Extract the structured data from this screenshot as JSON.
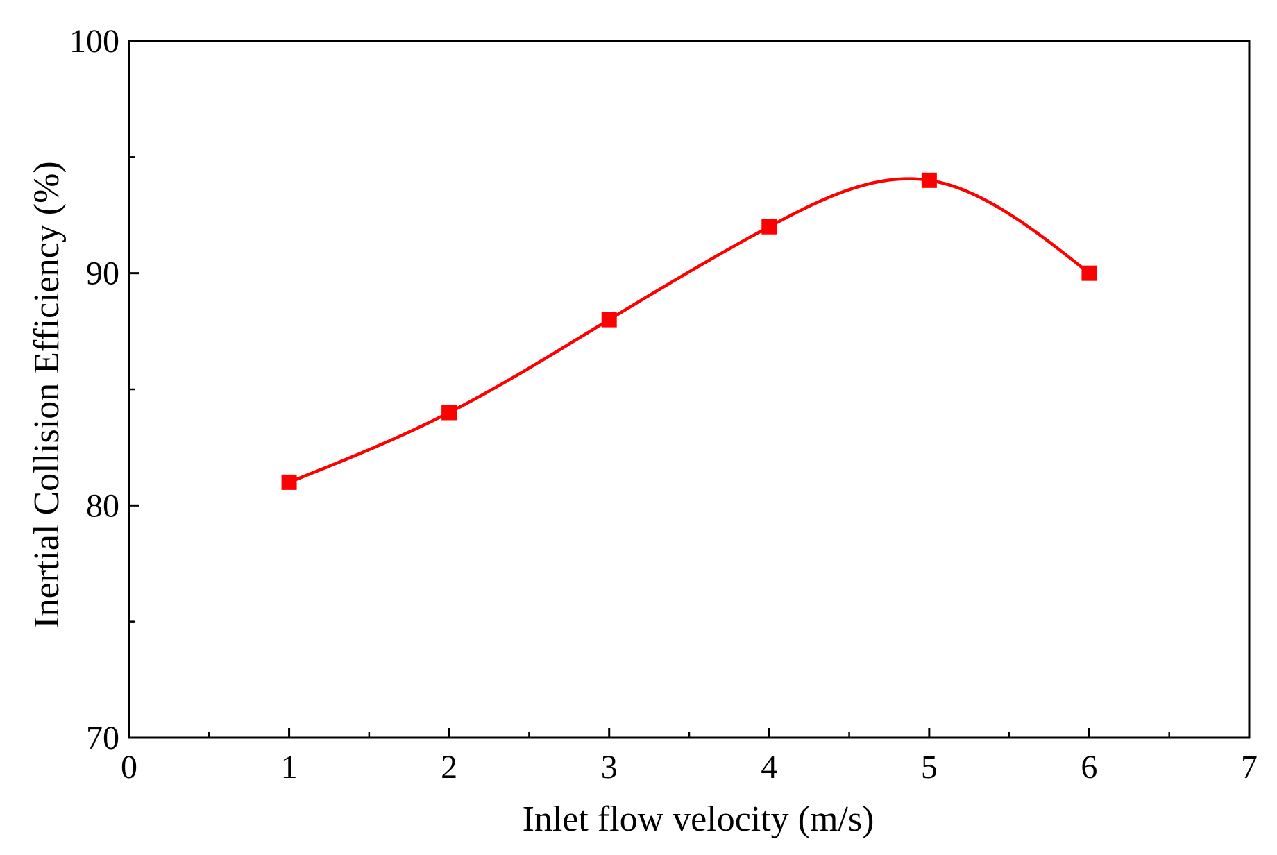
{
  "chart_data": {
    "type": "line",
    "title": "",
    "xlabel": "Inlet flow velocity (m/s)",
    "ylabel": "Inertial Collision Efficiency (%)",
    "xlim": [
      0,
      7
    ],
    "ylim": [
      70,
      100
    ],
    "x_ticks": [
      0,
      1,
      2,
      3,
      4,
      5,
      6,
      7
    ],
    "x_minor_step": 0.5,
    "y_ticks": [
      70,
      80,
      90,
      100
    ],
    "y_minor_step": 5,
    "grid": false,
    "legend": "none",
    "series": [
      {
        "name": "Inertial Collision Efficiency",
        "x": [
          1,
          2,
          3,
          4,
          5,
          6
        ],
        "values": [
          81,
          84,
          88,
          92,
          94,
          90
        ],
        "color": "#ff0000",
        "marker": "square",
        "line": "smooth spline"
      }
    ]
  }
}
